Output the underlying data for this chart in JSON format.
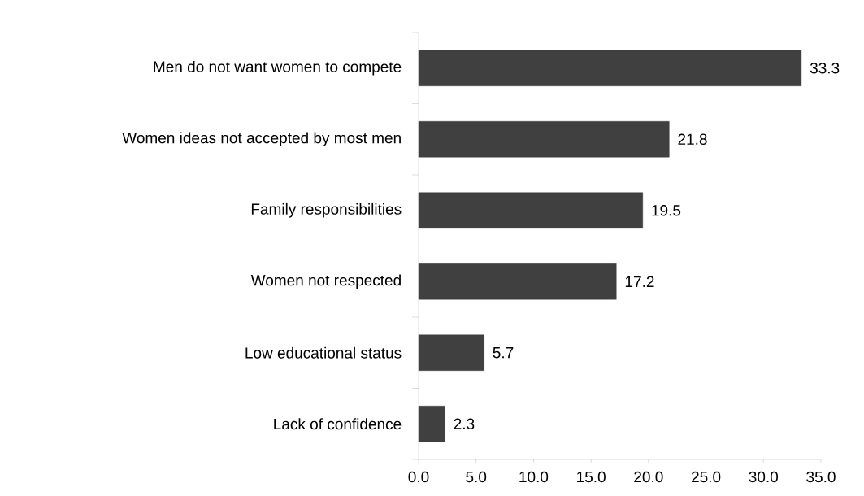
{
  "chart_data": {
    "type": "bar",
    "orientation": "horizontal",
    "categories": [
      "Men do not want women to compete",
      "Women ideas not accepted by most men",
      "Family responsibilities",
      "Women not respected",
      "Low educational status",
      "Lack of confidence"
    ],
    "values": [
      33.3,
      21.8,
      19.5,
      17.2,
      5.7,
      2.3
    ],
    "color": "#404040",
    "xlim": [
      0,
      35
    ],
    "xticks": [
      {
        "value": 0,
        "label": "0.0"
      },
      {
        "value": 5,
        "label": "5.0"
      },
      {
        "value": 10,
        "label": "10.0"
      },
      {
        "value": 15,
        "label": "15.0"
      },
      {
        "value": 20,
        "label": "20.0"
      },
      {
        "value": 25,
        "label": "25.0"
      },
      {
        "value": 30,
        "label": "30.0"
      },
      {
        "value": 35,
        "label": "35.0"
      }
    ],
    "data_labels": true,
    "grid": false
  }
}
